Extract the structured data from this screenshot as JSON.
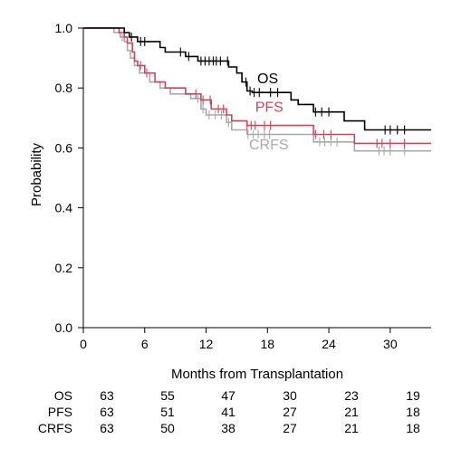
{
  "chart_data": {
    "type": "line",
    "subtype": "kaplan-meier step",
    "xlabel": "Months from Transplantation",
    "ylabel": "Probability",
    "xlim": [
      0,
      34
    ],
    "ylim": [
      0,
      1
    ],
    "xticks": [
      "0",
      "6",
      "12",
      "18",
      "24",
      "30"
    ],
    "xtick_values": [
      0,
      6,
      12,
      18,
      24,
      30
    ],
    "yticks": [
      "0.0",
      "0.2",
      "0.4",
      "0.6",
      "0.8",
      "1.0"
    ],
    "ytick_values": [
      0,
      0.2,
      0.4,
      0.6,
      0.8,
      1.0
    ],
    "grid": false,
    "series": [
      {
        "name": "OS",
        "color": "#000000",
        "steps": [
          [
            0,
            1.0
          ],
          [
            4.0,
            0.985
          ],
          [
            4.5,
            0.97
          ],
          [
            5.3,
            0.955
          ],
          [
            7.5,
            0.935
          ],
          [
            8.0,
            0.92
          ],
          [
            10.0,
            0.905
          ],
          [
            11.2,
            0.89
          ],
          [
            14.2,
            0.87
          ],
          [
            15.0,
            0.85
          ],
          [
            15.5,
            0.82
          ],
          [
            16.0,
            0.79
          ],
          [
            16.5,
            0.785
          ],
          [
            20.3,
            0.76
          ],
          [
            21.0,
            0.745
          ],
          [
            22.5,
            0.72
          ],
          [
            25.5,
            0.69
          ],
          [
            27.5,
            0.66
          ],
          [
            34,
            0.66
          ]
        ],
        "censor_x": [
          4.7,
          5.6,
          6.0,
          9.5,
          10.3,
          11.5,
          11.9,
          12.3,
          12.7,
          13.0,
          13.4,
          14.1,
          15.9,
          16.3,
          16.7,
          17.2,
          18.3,
          19.0,
          22.7,
          23.3,
          24.0,
          29.5,
          30.0,
          30.7,
          31.4
        ]
      },
      {
        "name": "PFS",
        "color": "#c8475b",
        "steps": [
          [
            0,
            1.0
          ],
          [
            3.5,
            0.985
          ],
          [
            4.0,
            0.97
          ],
          [
            4.3,
            0.95
          ],
          [
            4.8,
            0.92
          ],
          [
            5.0,
            0.89
          ],
          [
            5.3,
            0.875
          ],
          [
            6.0,
            0.85
          ],
          [
            7.0,
            0.82
          ],
          [
            8.0,
            0.8
          ],
          [
            10.0,
            0.78
          ],
          [
            11.5,
            0.76
          ],
          [
            12.5,
            0.73
          ],
          [
            14.0,
            0.71
          ],
          [
            14.5,
            0.69
          ],
          [
            16.0,
            0.675
          ],
          [
            22.5,
            0.645
          ],
          [
            26.5,
            0.615
          ],
          [
            34,
            0.615
          ]
        ],
        "censor_x": [
          5.6,
          6.2,
          11.0,
          11.7,
          12.4,
          13.2,
          13.7,
          16.0,
          16.4,
          16.8,
          17.7,
          18.3,
          22.7,
          23.5,
          24.2,
          28.7,
          29.2,
          30.0,
          31.4
        ]
      },
      {
        "name": "CRFS",
        "color": "#a9a9a9",
        "steps": [
          [
            0,
            1.0
          ],
          [
            3.0,
            0.985
          ],
          [
            3.6,
            0.97
          ],
          [
            4.0,
            0.955
          ],
          [
            4.3,
            0.925
          ],
          [
            4.6,
            0.9
          ],
          [
            5.0,
            0.875
          ],
          [
            5.5,
            0.85
          ],
          [
            6.5,
            0.82
          ],
          [
            7.5,
            0.8
          ],
          [
            8.5,
            0.78
          ],
          [
            10.5,
            0.765
          ],
          [
            11.5,
            0.73
          ],
          [
            12.0,
            0.71
          ],
          [
            14.0,
            0.685
          ],
          [
            14.5,
            0.66
          ],
          [
            16.0,
            0.645
          ],
          [
            22.5,
            0.62
          ],
          [
            26.5,
            0.59
          ],
          [
            34,
            0.59
          ]
        ],
        "censor_x": [
          3.8,
          11.2,
          11.7,
          12.3,
          12.9,
          13.5,
          14.2,
          16.1,
          16.6,
          17.1,
          17.7,
          18.2,
          23.1,
          23.6,
          24.2,
          24.8,
          28.9,
          29.4,
          30.0,
          31.4
        ]
      }
    ],
    "series_labels": [
      {
        "name": "OS",
        "x": 17.0,
        "y": 0.815,
        "color": "#000000"
      },
      {
        "name": "PFS",
        "x": 16.8,
        "y": 0.72,
        "color": "#c8475b"
      },
      {
        "name": "CRFS",
        "x": 16.2,
        "y": 0.595,
        "color": "#a9a9a9"
      }
    ],
    "risk_table": {
      "timepoints": [
        0,
        6,
        12,
        18,
        24,
        30
      ],
      "rows": [
        {
          "name": "OS",
          "values": [
            "63",
            "55",
            "47",
            "30",
            "23",
            "19"
          ]
        },
        {
          "name": "PFS",
          "values": [
            "63",
            "51",
            "41",
            "27",
            "21",
            "18"
          ]
        },
        {
          "name": "CRFS",
          "values": [
            "63",
            "50",
            "38",
            "27",
            "21",
            "18"
          ]
        }
      ]
    }
  }
}
